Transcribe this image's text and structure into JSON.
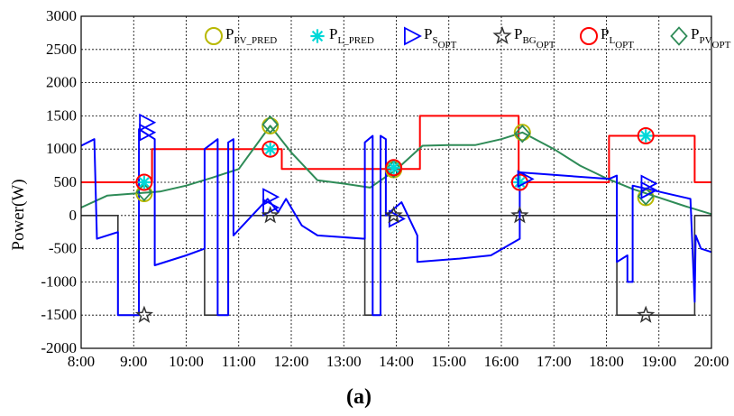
{
  "caption": {
    "open": "(",
    "letter": "a",
    "close": ")"
  },
  "chart_data": {
    "type": "line",
    "title": "",
    "xlabel": "",
    "ylabel": "Power(W)",
    "x_tick_labels": [
      "8:00",
      "9:00",
      "10:00",
      "11:00",
      "12:00",
      "13:00",
      "14:00",
      "15:00",
      "16:00",
      "17:00",
      "18:00",
      "19:00",
      "20:00"
    ],
    "y_tick_labels": [
      "3000",
      "2500",
      "2000",
      "1500",
      "1000",
      "500",
      "0",
      "-500",
      "-1000",
      "-1500",
      "-2000"
    ],
    "xlim": [
      8,
      20
    ],
    "ylim": [
      -2000,
      3000
    ],
    "grid": true,
    "legend_position": "top-right",
    "colors": {
      "load": "#ff0000",
      "pv": "#2e8b57",
      "storage": "#0000ff",
      "grid_power": "#333333",
      "pv_pred_marker": "#b8b800",
      "l_pred_marker": "#00d8d8",
      "l_opt_marker": "#ff0000",
      "pv_opt_marker": "#2e8b57"
    },
    "legend": [
      {
        "main": "P",
        "sub": "PV_PRED",
        "subsub": "",
        "marker": "circle",
        "color": "#b8b800"
      },
      {
        "main": "P",
        "sub": "L_PRED",
        "subsub": "",
        "marker": "asterisk",
        "color": "#00d8d8"
      },
      {
        "main": "P",
        "sub": "S",
        "subsub": "OPT",
        "marker": "triangle",
        "color": "#0000ff"
      },
      {
        "main": "P",
        "sub": "BG",
        "subsub": "OPT",
        "marker": "star",
        "color": "#333333"
      },
      {
        "main": "P",
        "sub": "L",
        "subsub": "OPT",
        "marker": "circle",
        "color": "#ff0000"
      },
      {
        "main": "P",
        "sub": "PV",
        "subsub": "OPT",
        "marker": "diamond",
        "color": "#2e8b57"
      }
    ],
    "series": [
      {
        "key": "load",
        "color": "#ff0000",
        "width": 2,
        "points": [
          [
            8,
            500
          ],
          [
            9.35,
            500
          ],
          [
            9.35,
            1000
          ],
          [
            11.82,
            1000
          ],
          [
            11.82,
            700
          ],
          [
            14.45,
            700
          ],
          [
            14.45,
            1500
          ],
          [
            16.33,
            1500
          ],
          [
            16.33,
            500
          ],
          [
            18.05,
            500
          ],
          [
            18.05,
            1200
          ],
          [
            19.68,
            1200
          ],
          [
            19.68,
            500
          ],
          [
            20,
            500
          ]
        ]
      },
      {
        "key": "pv",
        "color": "#2e8b57",
        "width": 2,
        "points": [
          [
            8,
            120
          ],
          [
            8.5,
            300
          ],
          [
            9,
            330
          ],
          [
            9.5,
            360
          ],
          [
            10,
            450
          ],
          [
            10.5,
            570
          ],
          [
            11,
            700
          ],
          [
            11.6,
            1350
          ],
          [
            12,
            950
          ],
          [
            12.5,
            530
          ],
          [
            13,
            480
          ],
          [
            13.5,
            420
          ],
          [
            14,
            690
          ],
          [
            14.5,
            1050
          ],
          [
            15,
            1060
          ],
          [
            15.5,
            1060
          ],
          [
            16,
            1150
          ],
          [
            16.4,
            1250
          ],
          [
            17,
            1000
          ],
          [
            17.5,
            750
          ],
          [
            18,
            560
          ],
          [
            18.5,
            400
          ],
          [
            19,
            270
          ],
          [
            19.5,
            140
          ],
          [
            20,
            20
          ]
        ]
      },
      {
        "key": "storage",
        "color": "#0000ff",
        "width": 2,
        "points": [
          [
            8,
            1050
          ],
          [
            8.25,
            1150
          ],
          [
            8.3,
            -350
          ],
          [
            8.7,
            -250
          ],
          [
            8.7,
            -1500
          ],
          [
            9.1,
            -1500
          ],
          [
            9.1,
            1300
          ],
          [
            9.4,
            1150
          ],
          [
            9.4,
            -750
          ],
          [
            10,
            -600
          ],
          [
            10.35,
            -500
          ],
          [
            10.35,
            1000
          ],
          [
            10.6,
            1150
          ],
          [
            10.6,
            -1500
          ],
          [
            10.8,
            -1500
          ],
          [
            10.8,
            1100
          ],
          [
            10.9,
            1150
          ],
          [
            10.9,
            -300
          ],
          [
            11.55,
            250
          ],
          [
            11.75,
            50
          ],
          [
            11.9,
            250
          ],
          [
            12.2,
            -150
          ],
          [
            12.5,
            -300
          ],
          [
            13.4,
            -350
          ],
          [
            13.4,
            1100
          ],
          [
            13.55,
            1200
          ],
          [
            13.55,
            -1500
          ],
          [
            13.7,
            -1500
          ],
          [
            13.7,
            1200
          ],
          [
            13.8,
            1150
          ],
          [
            13.8,
            0
          ],
          [
            14.1,
            200
          ],
          [
            14.4,
            -300
          ],
          [
            14.4,
            -700
          ],
          [
            15.2,
            -650
          ],
          [
            15.8,
            -600
          ],
          [
            16.35,
            -350
          ],
          [
            16.35,
            650
          ],
          [
            18.05,
            550
          ],
          [
            18.2,
            600
          ],
          [
            18.2,
            -700
          ],
          [
            18.4,
            -600
          ],
          [
            18.4,
            -1000
          ],
          [
            18.5,
            -1000
          ],
          [
            18.5,
            450
          ],
          [
            19.6,
            250
          ],
          [
            19.68,
            -1300
          ],
          [
            19.7,
            -300
          ],
          [
            19.8,
            -500
          ],
          [
            20,
            -550
          ]
        ]
      },
      {
        "key": "grid_power",
        "color": "#333333",
        "width": 1.6,
        "points": [
          [
            8,
            0
          ],
          [
            8.7,
            0
          ],
          [
            8.7,
            -1500
          ],
          [
            9.1,
            -1500
          ],
          [
            9.1,
            0
          ],
          [
            10.35,
            0
          ],
          [
            10.35,
            -1500
          ],
          [
            10.8,
            -1500
          ],
          [
            10.8,
            0
          ],
          [
            13.4,
            0
          ],
          [
            13.4,
            -1500
          ],
          [
            13.7,
            -1500
          ],
          [
            13.7,
            0
          ],
          [
            18.2,
            0
          ],
          [
            18.2,
            -1500
          ],
          [
            19.68,
            -1500
          ],
          [
            19.68,
            0
          ],
          [
            20,
            0
          ]
        ]
      }
    ],
    "markers": [
      {
        "type": "circle",
        "color": "#b8b800",
        "points": [
          [
            9.2,
            330
          ],
          [
            11.6,
            1350
          ],
          [
            13.95,
            690
          ],
          [
            16.4,
            1250
          ],
          [
            18.75,
            270
          ]
        ]
      },
      {
        "type": "diamond",
        "color": "#2e8b57",
        "points": [
          [
            9.2,
            350
          ],
          [
            11.6,
            1370
          ],
          [
            13.95,
            700
          ],
          [
            16.4,
            1230
          ],
          [
            18.75,
            290
          ]
        ]
      },
      {
        "type": "circle",
        "color": "#ff0000",
        "points": [
          [
            9.2,
            500
          ],
          [
            11.6,
            1000
          ],
          [
            13.95,
            720
          ],
          [
            16.35,
            500
          ],
          [
            18.75,
            1200
          ]
        ]
      },
      {
        "type": "asterisk",
        "color": "#00d8d8",
        "points": [
          [
            9.2,
            500
          ],
          [
            11.6,
            1000
          ],
          [
            13.95,
            720
          ],
          [
            16.35,
            500
          ],
          [
            18.75,
            1200
          ]
        ]
      },
      {
        "type": "triangle",
        "color": "#0000ff",
        "points": [
          [
            9.25,
            1400
          ],
          [
            9.25,
            1250
          ],
          [
            11.6,
            280
          ],
          [
            11.6,
            120
          ],
          [
            14.0,
            -50
          ],
          [
            16.45,
            550
          ],
          [
            18.8,
            480
          ],
          [
            18.8,
            380
          ]
        ]
      },
      {
        "type": "star",
        "color": "#333333",
        "points": [
          [
            9.2,
            -1500
          ],
          [
            11.6,
            0
          ],
          [
            13.95,
            0
          ],
          [
            16.35,
            0
          ],
          [
            18.75,
            -1500
          ]
        ]
      }
    ]
  }
}
